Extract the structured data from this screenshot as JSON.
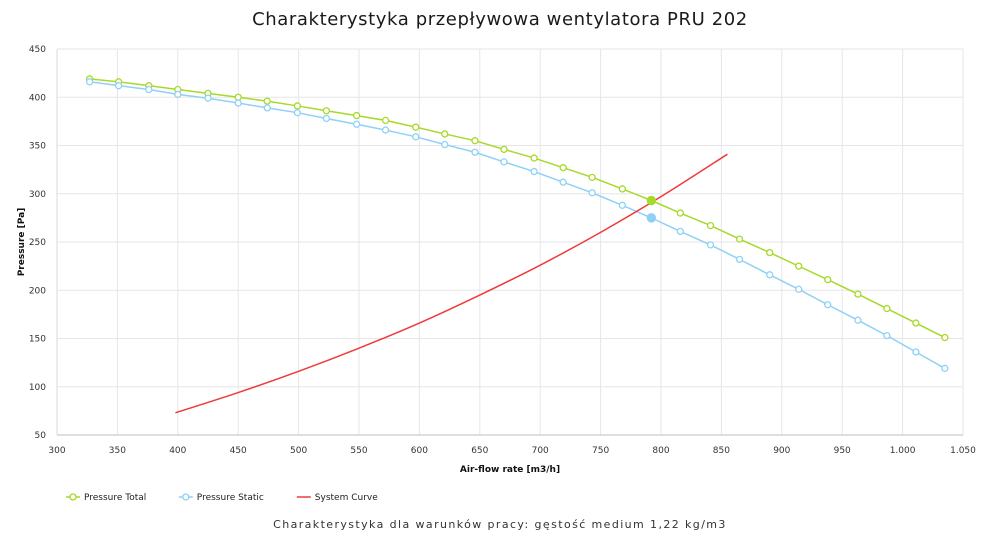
{
  "title": "Charakterystyka przepływowa wentylatora PRU 202",
  "caption": "Charakterystyka dla warunków pracy: gęstość medium 1,22 kg/m3",
  "chart_data": {
    "type": "line",
    "xlabel": "Air-flow rate [m3/h]",
    "ylabel": "Pressure [Pa]",
    "xlim": [
      300,
      1050
    ],
    "ylim": [
      50,
      450
    ],
    "x_ticks": [
      300,
      350,
      400,
      450,
      500,
      550,
      600,
      650,
      700,
      750,
      800,
      850,
      900,
      950,
      1000,
      1050
    ],
    "x_tick_labels": [
      "300",
      "350",
      "400",
      "450",
      "500",
      "550",
      "600",
      "650",
      "700",
      "750",
      "800",
      "850",
      "900",
      "950",
      "1.000",
      "1.050"
    ],
    "y_ticks": [
      50,
      100,
      150,
      200,
      250,
      300,
      350,
      400,
      450
    ],
    "grid": true,
    "legend_position": "bottom-left",
    "series": [
      {
        "name": "Pressure Total",
        "color": "#a6d92a",
        "marker": "hollow-circle",
        "x": [
          327,
          351,
          376,
          400,
          425,
          450,
          474,
          499,
          523,
          548,
          572,
          597,
          621,
          646,
          670,
          695,
          719,
          743,
          768,
          792,
          816,
          841,
          865,
          890,
          914,
          938,
          963,
          987,
          1011,
          1035
        ],
        "y": [
          419,
          416,
          412,
          408,
          404,
          400,
          396,
          391,
          386,
          381,
          376,
          369,
          362,
          355,
          346,
          337,
          327,
          317,
          305,
          293,
          280,
          267,
          253,
          239,
          225,
          211,
          196,
          181,
          166,
          151
        ]
      },
      {
        "name": "Pressure Static",
        "color": "#8fd1f5",
        "marker": "hollow-circle",
        "x": [
          327,
          351,
          376,
          400,
          425,
          450,
          474,
          499,
          523,
          548,
          572,
          597,
          621,
          646,
          670,
          695,
          719,
          743,
          768,
          792,
          816,
          841,
          865,
          890,
          914,
          938,
          963,
          987,
          1011,
          1035
        ],
        "y": [
          416,
          412,
          408,
          403,
          399,
          394,
          389,
          384,
          378,
          372,
          366,
          359,
          351,
          343,
          333,
          323,
          312,
          301,
          288,
          275,
          261,
          247,
          232,
          216,
          201,
          185,
          169,
          153,
          136,
          119
        ]
      },
      {
        "name": "System Curve",
        "color": "#f03a3a",
        "marker": "none",
        "x": [
          398,
          450,
          500,
          550,
          600,
          650,
          700,
          750,
          800,
          855
        ],
        "y": [
          73,
          94,
          116,
          140,
          166,
          195,
          226,
          260,
          297,
          341
        ]
      }
    ],
    "operating_points": [
      {
        "series": "Pressure Total",
        "x": 792,
        "y": 293,
        "color": "#a6d92a"
      },
      {
        "series": "Pressure Static",
        "x": 792,
        "y": 275,
        "color": "#8fd1f5"
      }
    ]
  }
}
